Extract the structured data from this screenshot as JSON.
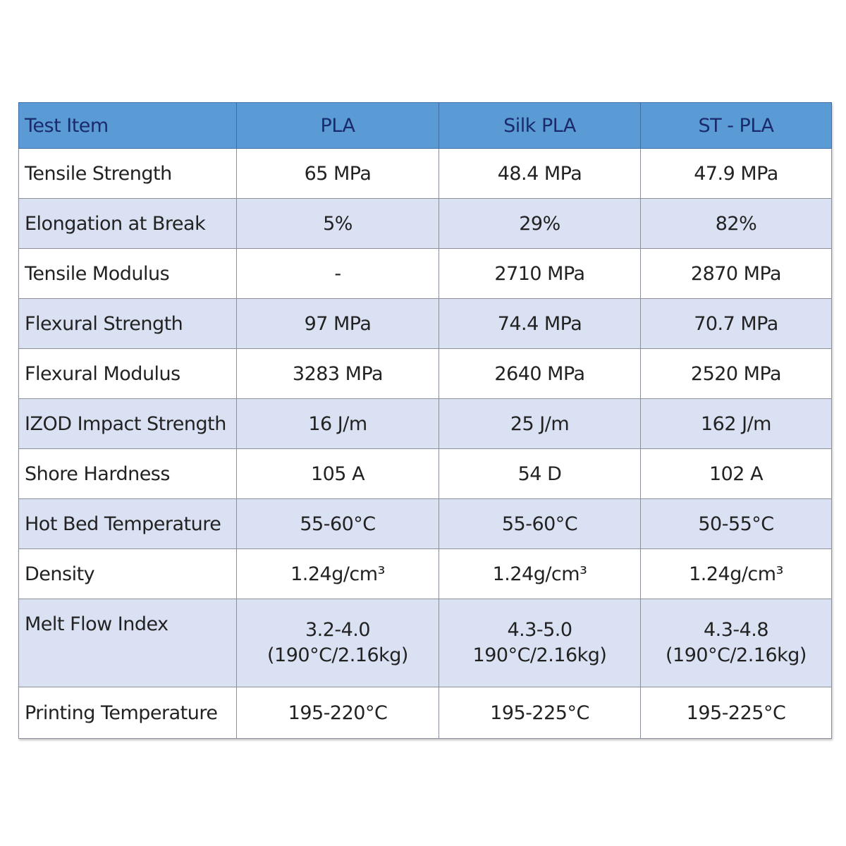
{
  "table": {
    "headers": [
      "Test  Item",
      "PLA",
      "Silk PLA",
      "ST - PLA"
    ],
    "rows": [
      {
        "item": "Tensile Strength",
        "pla": "65 MPa",
        "silk_pla": "48.4 MPa",
        "st_pla": "47.9 MPa"
      },
      {
        "item": "Elongation at Break",
        "pla": "5%",
        "silk_pla": "29%",
        "st_pla": "82%"
      },
      {
        "item": "Tensile Modulus",
        "pla": "-",
        "silk_pla": "2710 MPa",
        "st_pla": "2870 MPa"
      },
      {
        "item": "Flexural Strength",
        "pla": "97 MPa",
        "silk_pla": "74.4 MPa",
        "st_pla": "70.7 MPa"
      },
      {
        "item": "Flexural Modulus",
        "pla": "3283 MPa",
        "silk_pla": "2640 MPa",
        "st_pla": "2520 MPa"
      },
      {
        "item": "IZOD Impact Strength",
        "pla": "16 J/m",
        "silk_pla": "25 J/m",
        "st_pla": "162 J/m"
      },
      {
        "item": "Shore Hardness",
        "pla": "105 A",
        "silk_pla": "54 D",
        "st_pla": "102 A"
      },
      {
        "item": "Hot Bed Temperature",
        "pla": "55-60°C",
        "silk_pla": "55-60°C",
        "st_pla": "50-55°C"
      },
      {
        "item": "Density",
        "pla": "1.24g/cm³",
        "silk_pla": "1.24g/cm³",
        "st_pla": "1.24g/cm³"
      },
      {
        "item": "Melt Flow Index",
        "pla": "3.2-4.0",
        "pla_note": "(190°C/2.16kg)",
        "silk_pla": "4.3-5.0",
        "silk_pla_note": "190°C/2.16kg)",
        "st_pla": "4.3-4.8",
        "st_pla_note": "(190°C/2.16kg)"
      },
      {
        "item": "Printing Temperature",
        "pla": "195-220°C",
        "silk_pla": "195-225°C",
        "st_pla": "195-225°C"
      }
    ]
  },
  "colors": {
    "header_bg": "#5b9bd5",
    "header_text": "#1a2a6c",
    "alt_row_bg": "#d9e1f2",
    "row_bg": "#ffffff",
    "border": "#8a8f9a"
  }
}
